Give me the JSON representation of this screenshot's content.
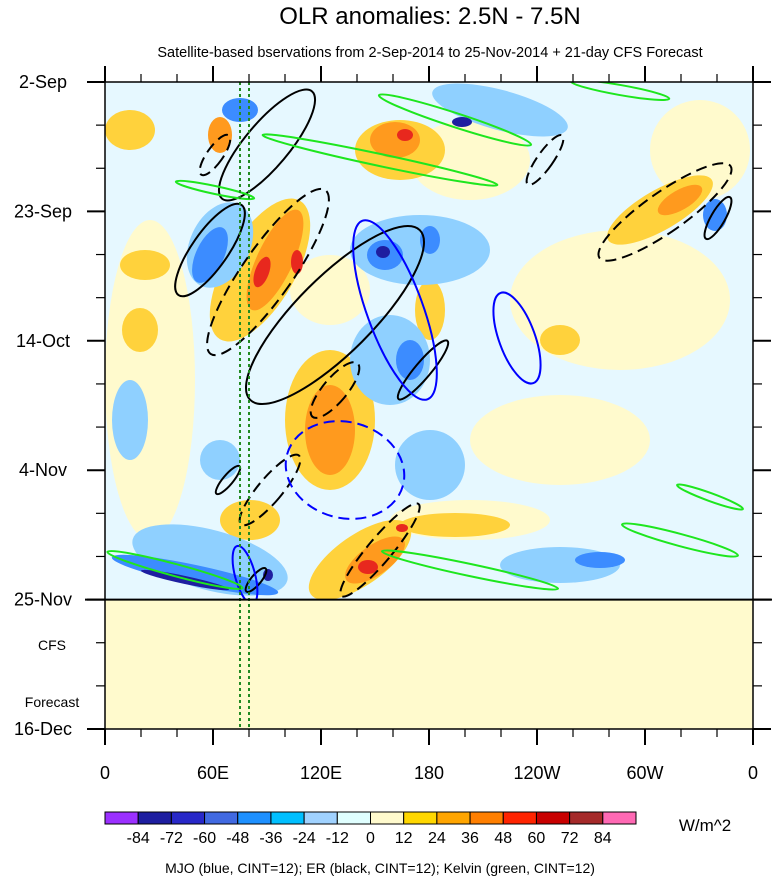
{
  "chart_data": {
    "type": "heatmap",
    "title": "OLR anomalies: 2.5N - 7.5N",
    "subtitle": "Satellite-based bservations from 2-Sep-2014 to 25-Nov-2014 + 21-day CFS Forecast",
    "x_axis": {
      "tick_labels": [
        "0",
        "60E",
        "120E",
        "180",
        "120W",
        "60W",
        "0"
      ],
      "tick_values_deg_east": [
        0,
        60,
        120,
        180,
        240,
        300,
        360
      ],
      "range": [
        0,
        360
      ]
    },
    "y_axis": {
      "tick_labels": [
        "2-Sep",
        "23-Sep",
        "14-Oct",
        "4-Nov",
        "25-Nov",
        "16-Dec"
      ],
      "tick_values": [
        "2014-09-02",
        "2014-09-23",
        "2014-10-14",
        "2014-11-04",
        "2014-11-25",
        "2014-12-16"
      ],
      "range": [
        "2014-09-02",
        "2014-12-16"
      ],
      "inverted": true
    },
    "observation_end": "2014-11-25",
    "forecast_label": [
      "CFS",
      "Forecast"
    ],
    "forecast_fill_color": "#fffacd",
    "colorbar": {
      "levels": [
        -84,
        -72,
        -60,
        -48,
        -36,
        -24,
        -12,
        0,
        12,
        24,
        36,
        48,
        60,
        72,
        84
      ],
      "tick_labels": [
        "-84",
        "-72",
        "-60",
        "-48",
        "-36",
        "-24",
        "-12",
        "0",
        "12",
        "24",
        "36",
        "48",
        "60",
        "72",
        "84"
      ],
      "colors": [
        "#9b30ff",
        "#1e1ea0",
        "#2828c8",
        "#4169e1",
        "#1e90ff",
        "#00bfff",
        "#a0d2ff",
        "#e0ffff",
        "#fffacd",
        "#ffd700",
        "#ffa500",
        "#ff7f00",
        "#ff2400",
        "#c80000",
        "#a52a2a",
        "#ff69b4"
      ],
      "units": "W/m^2"
    },
    "contour_note": "MJO (blue, CINT=12); ER (black, CINT=12); Kelvin (green, CINT=12)",
    "reference_lines_deg_east": [
      75,
      80
    ],
    "reference_line_color": "#228b22",
    "contour_colors": {
      "MJO": "#0000ff",
      "ER": "#000000",
      "Kelvin": "#00ff00"
    }
  }
}
